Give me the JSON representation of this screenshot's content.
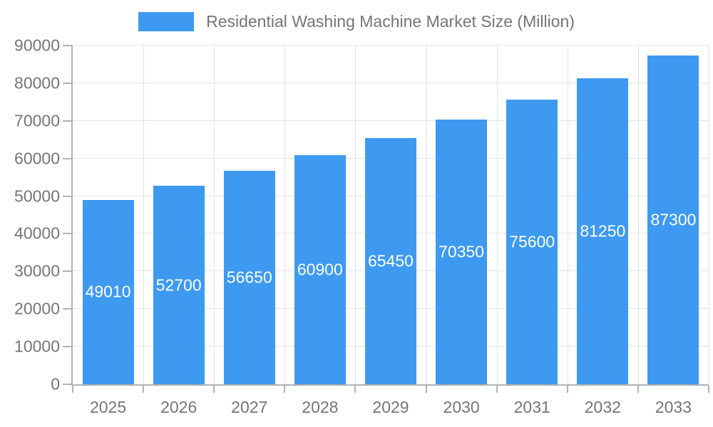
{
  "legend": {
    "label": "Residential Washing Machine Market Size (Million)"
  },
  "chart_data": {
    "type": "bar",
    "title": "Residential Washing Machine Market Size (Million)",
    "categories": [
      "2025",
      "2026",
      "2027",
      "2028",
      "2029",
      "2030",
      "2031",
      "2032",
      "2033"
    ],
    "series": [
      {
        "name": "Residential Washing Machine Market Size (Million)",
        "values": [
          49010,
          52700,
          56650,
          60900,
          65450,
          70350,
          75600,
          81250,
          87300
        ]
      }
    ],
    "xlabel": "",
    "ylabel": "",
    "ylim": [
      0,
      90000
    ],
    "yticks": [
      0,
      10000,
      20000,
      30000,
      40000,
      50000,
      60000,
      70000,
      80000,
      90000
    ],
    "grid": true,
    "legend_position": "top",
    "value_label_position": "inside-center",
    "colors": {
      "bar": "#3d9af0",
      "value_label": "#ffffff",
      "axis": "#b2b2b2",
      "grid": "#e3e3e3",
      "text": "#757575",
      "background": "#ffffff"
    }
  }
}
